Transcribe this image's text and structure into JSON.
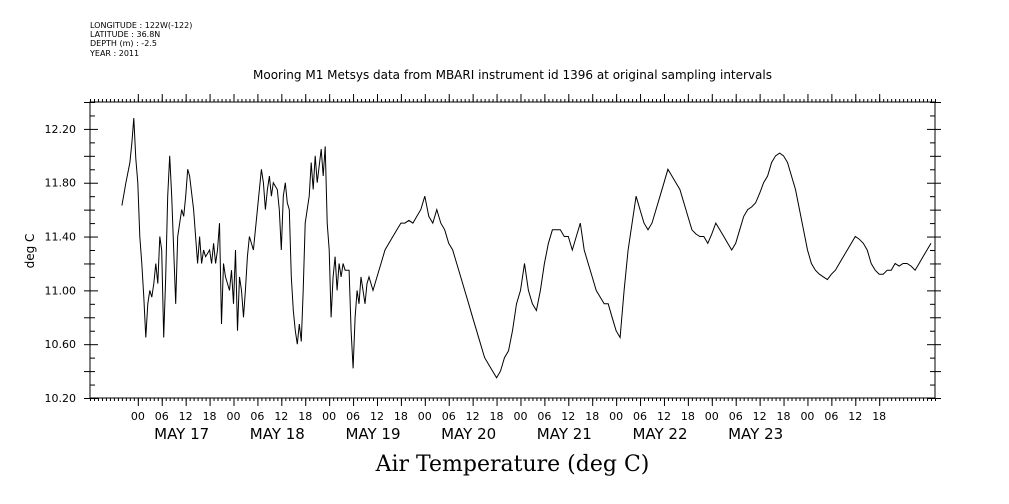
{
  "header": {
    "meta_lines": [
      "LONGITUDE : 122W(-122)",
      "LATITUDE : 36.8N",
      "DEPTH (m) : -2.5",
      "YEAR : 2011"
    ]
  },
  "chart_data": {
    "type": "line",
    "title": "Mooring M1 Metsys data from MBARI instrument id 1396 at original sampling intervals",
    "xlabel": "Air Temperature (deg C)",
    "ylabel": "deg C",
    "ylim": [
      10.2,
      12.4
    ],
    "y_ticks_labeled": [
      "10.20",
      "10.60",
      "11.00",
      "11.40",
      "11.80",
      "12.20"
    ],
    "xlim_hours_from_may17_00": [
      -12,
      200
    ],
    "x_tick_labels": [
      "00",
      "06",
      "12",
      "18",
      "00",
      "06",
      "12",
      "18",
      "00",
      "06",
      "12",
      "18",
      "00",
      "06",
      "12",
      "18",
      "00",
      "06",
      "12",
      "18",
      "00",
      "06",
      "12",
      "18",
      "00",
      "06",
      "12",
      "18",
      "00",
      "06",
      "12",
      "18"
    ],
    "day_labels": [
      "MAY 17",
      "MAY 18",
      "MAY 19",
      "MAY 20",
      "MAY 21",
      "MAY 22",
      "MAY 23"
    ],
    "grid": false,
    "series": [
      {
        "points": [
          [
            -4,
            11.63
          ],
          [
            -3,
            11.8
          ],
          [
            -2,
            11.95
          ],
          [
            -1.5,
            12.1
          ],
          [
            -1,
            12.28
          ],
          [
            -0.5,
            11.98
          ],
          [
            0,
            11.8
          ],
          [
            0.5,
            11.4
          ],
          [
            1,
            11.2
          ],
          [
            1.5,
            10.95
          ],
          [
            2,
            10.65
          ],
          [
            2.5,
            10.9
          ],
          [
            3,
            11.0
          ],
          [
            3.5,
            10.95
          ],
          [
            4,
            11.05
          ],
          [
            4.5,
            11.2
          ],
          [
            5,
            11.05
          ],
          [
            5.5,
            11.4
          ],
          [
            6,
            11.3
          ],
          [
            6.5,
            10.65
          ],
          [
            7,
            11.1
          ],
          [
            7.5,
            11.7
          ],
          [
            8,
            12.0
          ],
          [
            8.5,
            11.7
          ],
          [
            9,
            11.3
          ],
          [
            9.5,
            10.9
          ],
          [
            10,
            11.4
          ],
          [
            10.5,
            11.5
          ],
          [
            11,
            11.6
          ],
          [
            11.5,
            11.55
          ],
          [
            12,
            11.7
          ],
          [
            12.5,
            11.9
          ],
          [
            13,
            11.85
          ],
          [
            14,
            11.6
          ],
          [
            14.5,
            11.4
          ],
          [
            15,
            11.2
          ],
          [
            15.5,
            11.4
          ],
          [
            16,
            11.2
          ],
          [
            16.5,
            11.3
          ],
          [
            17,
            11.25
          ],
          [
            18,
            11.3
          ],
          [
            18.5,
            11.2
          ],
          [
            19,
            11.35
          ],
          [
            19.5,
            11.2
          ],
          [
            20,
            11.3
          ],
          [
            20.5,
            11.5
          ],
          [
            21,
            10.75
          ],
          [
            21.5,
            11.2
          ],
          [
            22,
            11.1
          ],
          [
            23,
            11.0
          ],
          [
            23.5,
            11.15
          ],
          [
            24,
            10.9
          ],
          [
            24.5,
            11.3
          ],
          [
            25,
            10.7
          ],
          [
            25.5,
            11.1
          ],
          [
            26,
            11.0
          ],
          [
            26.5,
            10.8
          ],
          [
            27,
            11.0
          ],
          [
            27.5,
            11.25
          ],
          [
            28,
            11.4
          ],
          [
            29,
            11.3
          ],
          [
            29.5,
            11.45
          ],
          [
            30,
            11.6
          ],
          [
            31,
            11.9
          ],
          [
            31.5,
            11.8
          ],
          [
            32,
            11.6
          ],
          [
            32.5,
            11.75
          ],
          [
            33,
            11.85
          ],
          [
            33.5,
            11.7
          ],
          [
            34,
            11.8
          ],
          [
            35,
            11.75
          ],
          [
            35.5,
            11.6
          ],
          [
            36,
            11.3
          ],
          [
            36.5,
            11.7
          ],
          [
            37,
            11.8
          ],
          [
            37.5,
            11.65
          ],
          [
            38,
            11.6
          ],
          [
            38.5,
            11.1
          ],
          [
            39,
            10.85
          ],
          [
            39.5,
            10.7
          ],
          [
            40,
            10.6
          ],
          [
            40.5,
            10.75
          ],
          [
            41,
            10.62
          ],
          [
            41.5,
            11.0
          ],
          [
            42,
            11.5
          ],
          [
            43,
            11.7
          ],
          [
            43.5,
            11.95
          ],
          [
            44,
            11.75
          ],
          [
            44.5,
            12.0
          ],
          [
            45,
            11.8
          ],
          [
            46,
            12.05
          ],
          [
            46.5,
            11.85
          ],
          [
            47,
            12.07
          ],
          [
            47.5,
            11.5
          ],
          [
            48,
            11.3
          ],
          [
            48.5,
            10.8
          ],
          [
            49,
            11.1
          ],
          [
            49.5,
            11.25
          ],
          [
            50,
            11.0
          ],
          [
            50.5,
            11.2
          ],
          [
            51,
            11.1
          ],
          [
            51.5,
            11.2
          ],
          [
            52,
            11.15
          ],
          [
            53,
            11.15
          ],
          [
            53.5,
            10.7
          ],
          [
            54,
            10.42
          ],
          [
            54.5,
            10.8
          ],
          [
            55,
            11.0
          ],
          [
            55.5,
            10.9
          ],
          [
            56,
            11.1
          ],
          [
            57,
            10.9
          ],
          [
            57.5,
            11.05
          ],
          [
            58,
            11.1
          ],
          [
            59,
            11.0
          ],
          [
            60,
            11.1
          ],
          [
            61,
            11.2
          ],
          [
            62,
            11.3
          ],
          [
            63,
            11.35
          ],
          [
            64,
            11.4
          ],
          [
            65,
            11.45
          ],
          [
            66,
            11.5
          ],
          [
            67,
            11.5
          ],
          [
            68,
            11.52
          ],
          [
            69,
            11.5
          ],
          [
            70,
            11.55
          ],
          [
            71,
            11.6
          ],
          [
            72,
            11.7
          ],
          [
            73,
            11.55
          ],
          [
            74,
            11.5
          ],
          [
            75,
            11.6
          ],
          [
            76,
            11.5
          ],
          [
            77,
            11.45
          ],
          [
            78,
            11.35
          ],
          [
            79,
            11.3
          ],
          [
            80,
            11.2
          ],
          [
            81,
            11.1
          ],
          [
            82,
            11.0
          ],
          [
            83,
            10.9
          ],
          [
            84,
            10.8
          ],
          [
            85,
            10.7
          ],
          [
            86,
            10.6
          ],
          [
            87,
            10.5
          ],
          [
            88,
            10.45
          ],
          [
            89,
            10.4
          ],
          [
            90,
            10.35
          ],
          [
            91,
            10.4
          ],
          [
            92,
            10.5
          ],
          [
            93,
            10.55
          ],
          [
            94,
            10.7
          ],
          [
            95,
            10.9
          ],
          [
            96,
            11.0
          ],
          [
            97,
            11.2
          ],
          [
            98,
            11.0
          ],
          [
            99,
            10.9
          ],
          [
            100,
            10.85
          ],
          [
            101,
            11.0
          ],
          [
            102,
            11.2
          ],
          [
            103,
            11.35
          ],
          [
            104,
            11.45
          ],
          [
            105,
            11.45
          ],
          [
            106,
            11.45
          ],
          [
            107,
            11.4
          ],
          [
            108,
            11.4
          ],
          [
            109,
            11.3
          ],
          [
            110,
            11.4
          ],
          [
            111,
            11.5
          ],
          [
            112,
            11.3
          ],
          [
            113,
            11.2
          ],
          [
            114,
            11.1
          ],
          [
            115,
            11.0
          ],
          [
            116,
            10.95
          ],
          [
            117,
            10.9
          ],
          [
            118,
            10.9
          ],
          [
            119,
            10.8
          ],
          [
            120,
            10.7
          ],
          [
            121,
            10.65
          ],
          [
            122,
            11.0
          ],
          [
            123,
            11.3
          ],
          [
            124,
            11.5
          ],
          [
            125,
            11.7
          ],
          [
            126,
            11.6
          ],
          [
            127,
            11.5
          ],
          [
            128,
            11.45
          ],
          [
            129,
            11.5
          ],
          [
            130,
            11.6
          ],
          [
            131,
            11.7
          ],
          [
            132,
            11.8
          ],
          [
            133,
            11.9
          ],
          [
            134,
            11.85
          ],
          [
            135,
            11.8
          ],
          [
            136,
            11.75
          ],
          [
            137,
            11.65
          ],
          [
            138,
            11.55
          ],
          [
            139,
            11.45
          ],
          [
            140,
            11.42
          ],
          [
            141,
            11.4
          ],
          [
            142,
            11.4
          ],
          [
            143,
            11.35
          ],
          [
            144,
            11.42
          ],
          [
            145,
            11.5
          ],
          [
            146,
            11.45
          ],
          [
            147,
            11.4
          ],
          [
            148,
            11.35
          ],
          [
            149,
            11.3
          ],
          [
            150,
            11.35
          ],
          [
            151,
            11.45
          ],
          [
            152,
            11.55
          ],
          [
            153,
            11.6
          ],
          [
            154,
            11.62
          ],
          [
            155,
            11.65
          ],
          [
            156,
            11.72
          ],
          [
            157,
            11.8
          ],
          [
            158,
            11.85
          ],
          [
            159,
            11.95
          ],
          [
            160,
            12.0
          ],
          [
            161,
            12.02
          ],
          [
            162,
            12.0
          ],
          [
            163,
            11.95
          ],
          [
            164,
            11.85
          ],
          [
            165,
            11.75
          ],
          [
            166,
            11.6
          ],
          [
            167,
            11.45
          ],
          [
            168,
            11.3
          ],
          [
            169,
            11.2
          ],
          [
            170,
            11.15
          ],
          [
            171,
            11.12
          ],
          [
            172,
            11.1
          ],
          [
            173,
            11.08
          ],
          [
            174,
            11.12
          ],
          [
            175,
            11.15
          ],
          [
            176,
            11.2
          ],
          [
            177,
            11.25
          ],
          [
            178,
            11.3
          ],
          [
            179,
            11.35
          ],
          [
            180,
            11.4
          ],
          [
            181,
            11.38
          ],
          [
            182,
            11.35
          ],
          [
            183,
            11.3
          ],
          [
            184,
            11.2
          ],
          [
            185,
            11.15
          ],
          [
            186,
            11.12
          ],
          [
            187,
            11.12
          ],
          [
            188,
            11.15
          ],
          [
            189,
            11.15
          ],
          [
            190,
            11.2
          ],
          [
            191,
            11.18
          ],
          [
            192,
            11.2
          ],
          [
            193,
            11.2
          ],
          [
            194,
            11.18
          ],
          [
            195,
            11.15
          ],
          [
            196,
            11.2
          ],
          [
            197,
            11.25
          ],
          [
            198,
            11.3
          ],
          [
            199,
            11.35
          ]
        ]
      }
    ]
  }
}
